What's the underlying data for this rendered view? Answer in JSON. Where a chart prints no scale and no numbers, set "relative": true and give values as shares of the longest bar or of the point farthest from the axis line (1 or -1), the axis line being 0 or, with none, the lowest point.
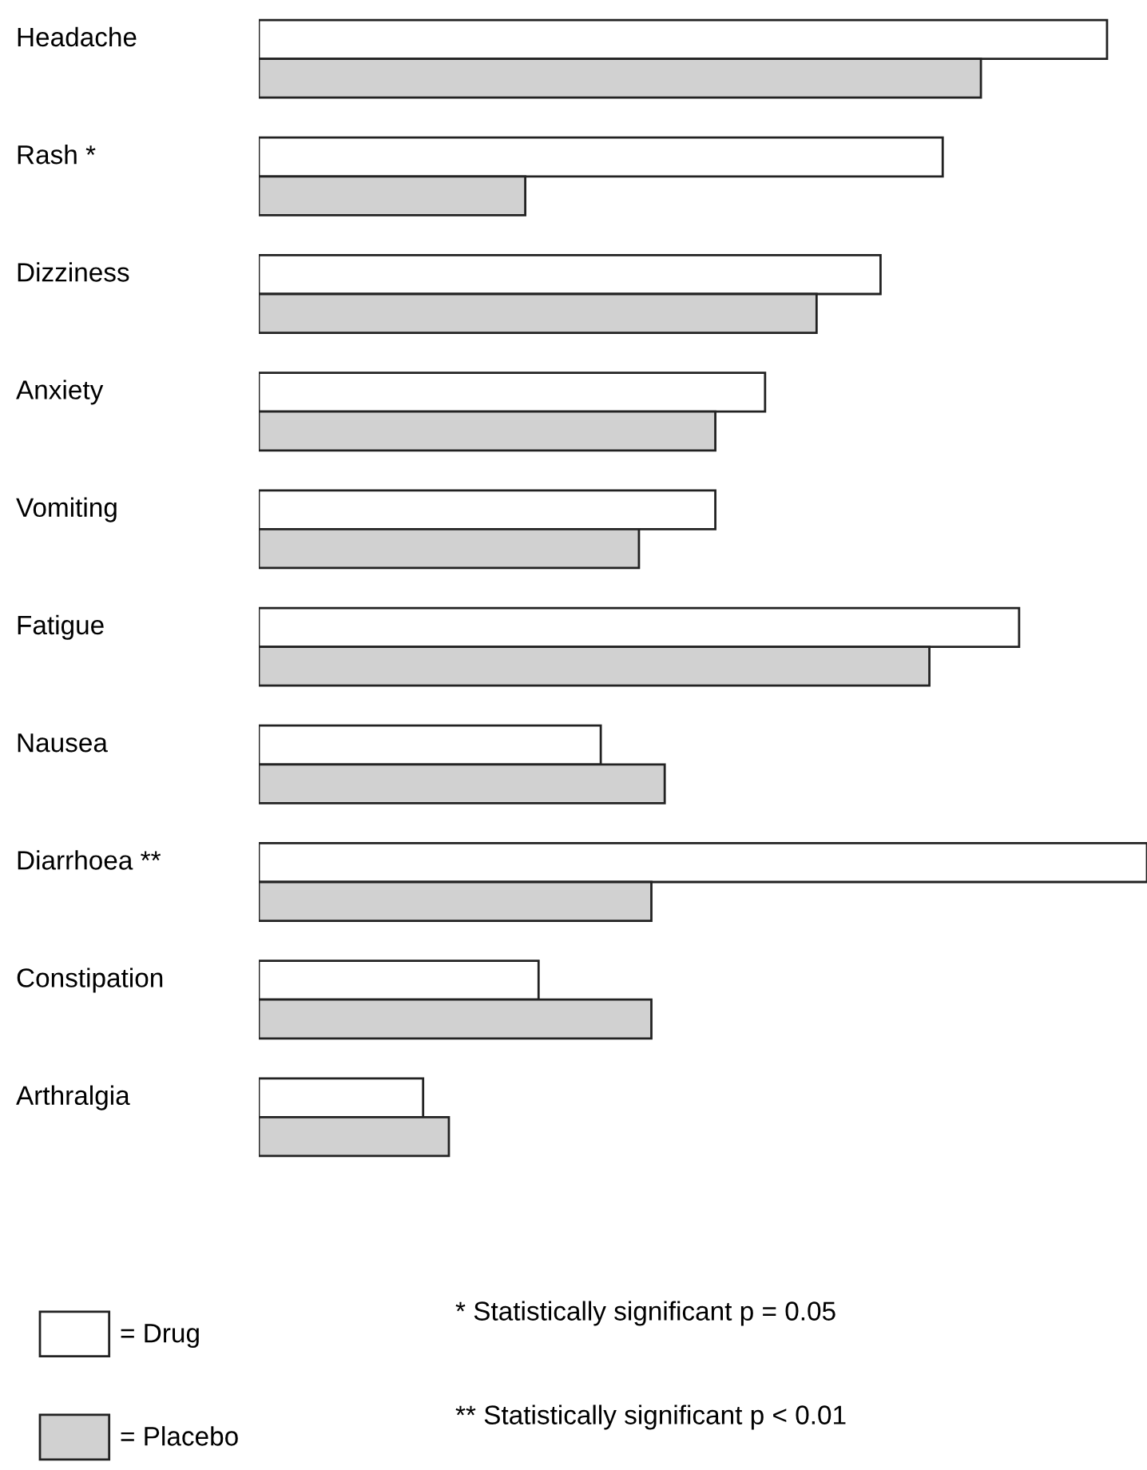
{
  "chart_data": {
    "type": "bar",
    "orientation": "horizontal",
    "relative": true,
    "categories": [
      "Headache",
      "Rash *",
      "Dizziness",
      "Anxiety",
      "Vomiting",
      "Fatigue",
      "Nausea",
      "Diarrhoea **",
      "Constipation",
      "Arthralgia"
    ],
    "series": [
      {
        "name": "= Drug",
        "color": "#ffffff",
        "values": [
          0.955,
          0.77,
          0.7,
          0.57,
          0.514,
          0.856,
          0.385,
          1.0,
          0.315,
          0.185
        ]
      },
      {
        "name": "= Placebo",
        "color": "#d1d1d1",
        "values": [
          0.813,
          0.3,
          0.628,
          0.514,
          0.428,
          0.755,
          0.457,
          0.442,
          0.442,
          0.214
        ]
      }
    ],
    "legend": "bottom left",
    "annotations": [
      "* Statistically significant p = 0.05",
      "** Statistically significant p < 0.01"
    ]
  }
}
